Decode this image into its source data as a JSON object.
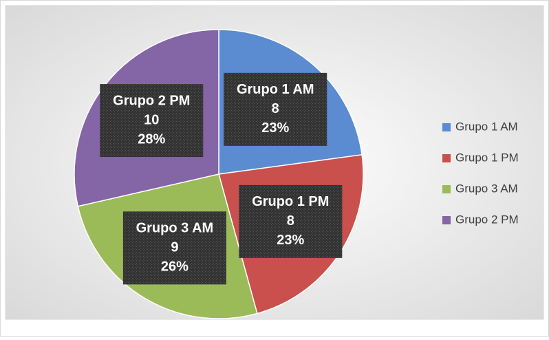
{
  "chart_data": {
    "type": "pie",
    "categories": [
      "Grupo 1 AM",
      "Grupo 1 PM",
      "Grupo 3 AM",
      "Grupo 2 PM"
    ],
    "values": [
      8,
      8,
      9,
      10
    ],
    "percents": [
      23,
      23,
      26,
      28
    ],
    "percent_labels": [
      "23%",
      "23%",
      "26%",
      "28%"
    ],
    "colors": [
      "#5b8bd0",
      "#c9504d",
      "#9bbb59",
      "#8465a6"
    ],
    "legend": "right"
  }
}
